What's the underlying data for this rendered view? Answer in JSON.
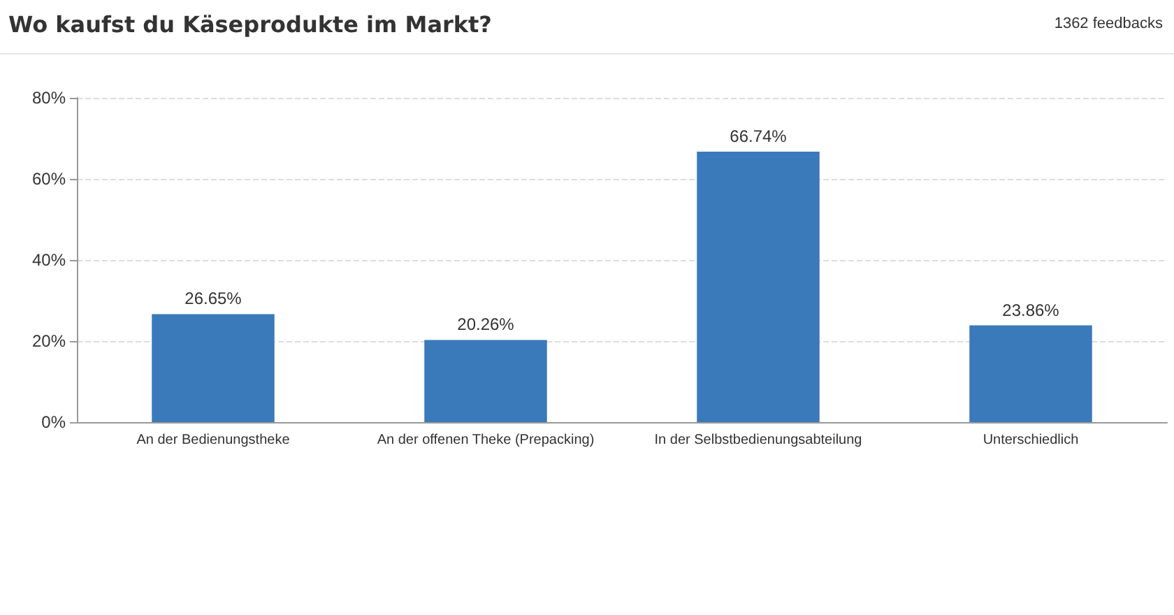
{
  "chart_data": {
    "type": "bar",
    "title": "Wo kaufst du Käseprodukte im Markt?",
    "annotations": [
      "1362 feedbacks"
    ],
    "categories": [
      "An der Bedienungstheke",
      "An der offenen Theke (Prepacking)",
      "In der Selbstbedienungsabteilung",
      "Unterschiedlich"
    ],
    "values": [
      26.65,
      20.26,
      66.74,
      23.86
    ],
    "value_labels": [
      "26.65%",
      "20.26%",
      "66.74%",
      "23.86%"
    ],
    "color": "#3a7aba",
    "ylim": [
      0,
      80
    ],
    "yticks": [
      {
        "value": 0,
        "label": "0%"
      },
      {
        "value": 20,
        "label": "20%"
      },
      {
        "value": 40,
        "label": "40%"
      },
      {
        "value": 60,
        "label": "60%"
      },
      {
        "value": 80,
        "label": "80%"
      }
    ],
    "grid": "y"
  }
}
